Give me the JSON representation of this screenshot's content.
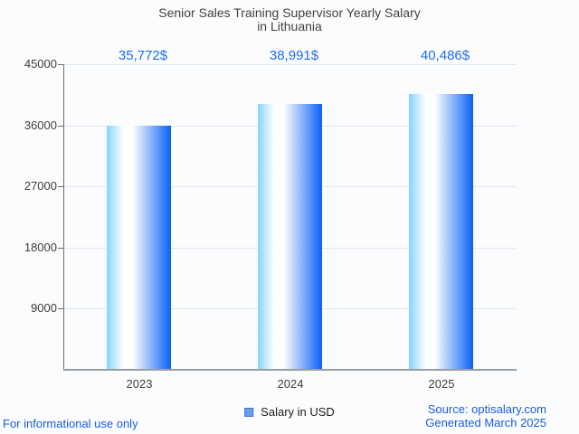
{
  "title": {
    "line1": "Senior Sales Training Supervisor Yearly Salary",
    "line2": "in Lithuania"
  },
  "chart_data": {
    "type": "bar",
    "title": "Senior Sales Training Supervisor Yearly Salary in Lithuania",
    "categories": [
      "2023",
      "2024",
      "2025"
    ],
    "values": [
      35772,
      38991,
      40486
    ],
    "value_labels": [
      "35,772$",
      "38,991$",
      "40,486$"
    ],
    "series": [
      {
        "name": "Salary in USD",
        "values": [
          35772,
          38991,
          40486
        ]
      }
    ],
    "ylabel": "",
    "xlabel": "",
    "ylim": [
      0,
      45000
    ],
    "yticks": [
      9000,
      18000,
      27000,
      36000,
      45000
    ],
    "grid": true,
    "legend_position": "bottom",
    "annotation_color": "#1d6bf3",
    "bar_gradient": [
      "#85d5fc",
      "#ffffff",
      "#0a62f4"
    ]
  },
  "legend": {
    "label": "Salary in USD",
    "swatch_fill": "#6d9eeb",
    "swatch_border": "#3e78d2"
  },
  "footer": {
    "left": "For informational use only",
    "source": "Source: optisalary.com",
    "generated": "Generated March 2025"
  }
}
